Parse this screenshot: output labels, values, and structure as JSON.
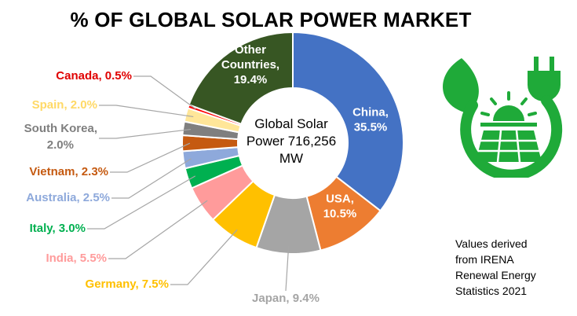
{
  "chart_data": {
    "type": "pie",
    "variant": "donut",
    "title": "% OF GLOBAL SOLAR POWER MARKET",
    "center_label": [
      "Global Solar",
      "Power 716,256",
      "MW"
    ],
    "slices": [
      {
        "name": "China",
        "value": 35.5,
        "label_lines": [
          "China,",
          "35.5%"
        ],
        "color": "#4472C4",
        "label_color": "#FFFFFF",
        "label_position": "inside"
      },
      {
        "name": "USA",
        "value": 10.5,
        "label_lines": [
          "USA,",
          "10.5%"
        ],
        "color": "#ED7D31",
        "label_color": "#FFFFFF",
        "label_position": "inside"
      },
      {
        "name": "Japan",
        "value": 9.4,
        "label_lines": [
          "Japan, 9.4%"
        ],
        "color": "#A5A5A5",
        "label_color": "#A5A5A5",
        "label_position": "outside"
      },
      {
        "name": "Germany",
        "value": 7.5,
        "label_lines": [
          "Germany, 7.5%"
        ],
        "color": "#FFC000",
        "label_color": "#FFC000",
        "label_position": "outside"
      },
      {
        "name": "India",
        "value": 5.5,
        "label_lines": [
          "India, 5.5%"
        ],
        "color": "#FF9B9B",
        "label_color": "#FF9B9B",
        "label_position": "outside"
      },
      {
        "name": "Italy",
        "value": 3.0,
        "label_lines": [
          "Italy, 3.0%"
        ],
        "color": "#00B050",
        "label_color": "#00B050",
        "label_position": "outside"
      },
      {
        "name": "Australia",
        "value": 2.5,
        "label_lines": [
          "Australia, 2.5%"
        ],
        "color": "#8EA9DB",
        "label_color": "#8EA9DB",
        "label_position": "outside"
      },
      {
        "name": "Vietnam",
        "value": 2.3,
        "label_lines": [
          "Vietnam, 2.3%"
        ],
        "color": "#C55A11",
        "label_color": "#C55A11",
        "label_position": "outside"
      },
      {
        "name": "South Korea",
        "value": 2.0,
        "label_lines": [
          "South Korea,",
          "2.0%"
        ],
        "color": "#7F7F7F",
        "label_color": "#7F7F7F",
        "label_position": "outside"
      },
      {
        "name": "Spain",
        "value": 2.0,
        "label_lines": [
          "Spain, 2.0%"
        ],
        "color": "#FFE699",
        "label_color": "#FFD966",
        "label_position": "outside"
      },
      {
        "name": "Canada",
        "value": 0.5,
        "label_lines": [
          "Canada, 0.5%"
        ],
        "color": "#FF0000",
        "label_color": "#E00000",
        "label_position": "outside"
      },
      {
        "name": "Other Countries",
        "value": 19.4,
        "label_lines": [
          "Other",
          "Countries,",
          "19.4%"
        ],
        "color": "#375623",
        "label_color": "#FFFFFF",
        "label_position": "inside"
      }
    ]
  },
  "note": {
    "lines": [
      "Values derived",
      "from IRENA",
      "Renewal Energy",
      "Statistics 2021"
    ]
  },
  "logo": {
    "icon": "renewable-energy-icon",
    "color": "#1FAA39"
  }
}
